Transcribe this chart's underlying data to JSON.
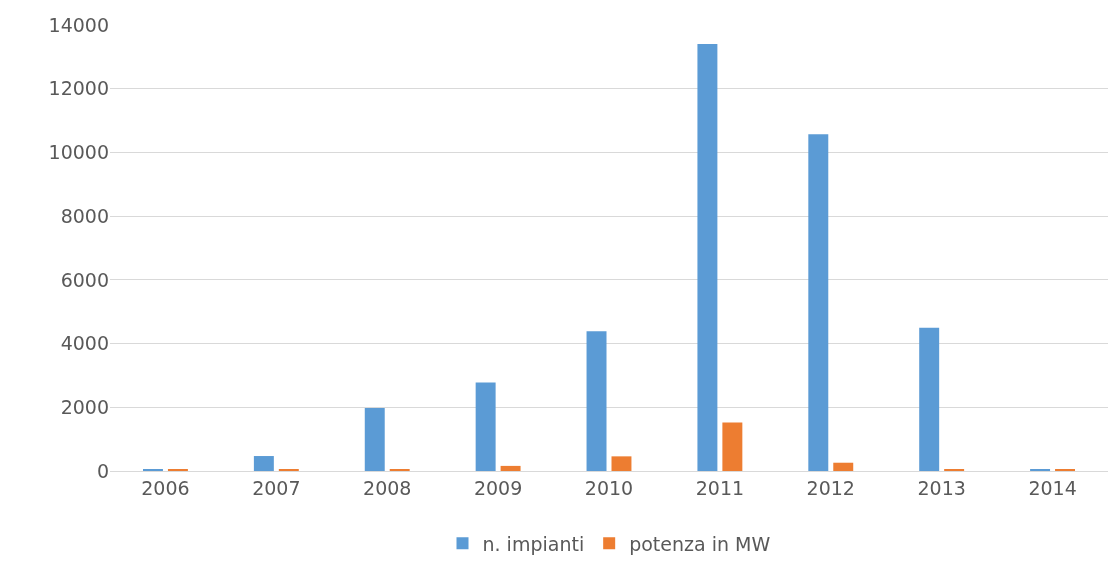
{
  "chart_data": {
    "type": "bar",
    "categories": [
      "2006",
      "2007",
      "2008",
      "2009",
      "2010",
      "2011",
      "2012",
      "2013",
      "2014"
    ],
    "series": [
      {
        "name": "n. impianti",
        "color": "#5b9bd5",
        "values": [
          60,
          470,
          1980,
          2780,
          4390,
          13400,
          10570,
          4500,
          60
        ]
      },
      {
        "name": "potenza in MW",
        "color": "#ed7d31",
        "values": [
          60,
          60,
          60,
          160,
          460,
          1520,
          260,
          60,
          60
        ]
      }
    ],
    "ylim": [
      0,
      14000
    ],
    "yticks": [
      0,
      2000,
      4000,
      6000,
      8000,
      10000,
      12000,
      14000
    ],
    "grid": "y",
    "legend": "bottom"
  }
}
